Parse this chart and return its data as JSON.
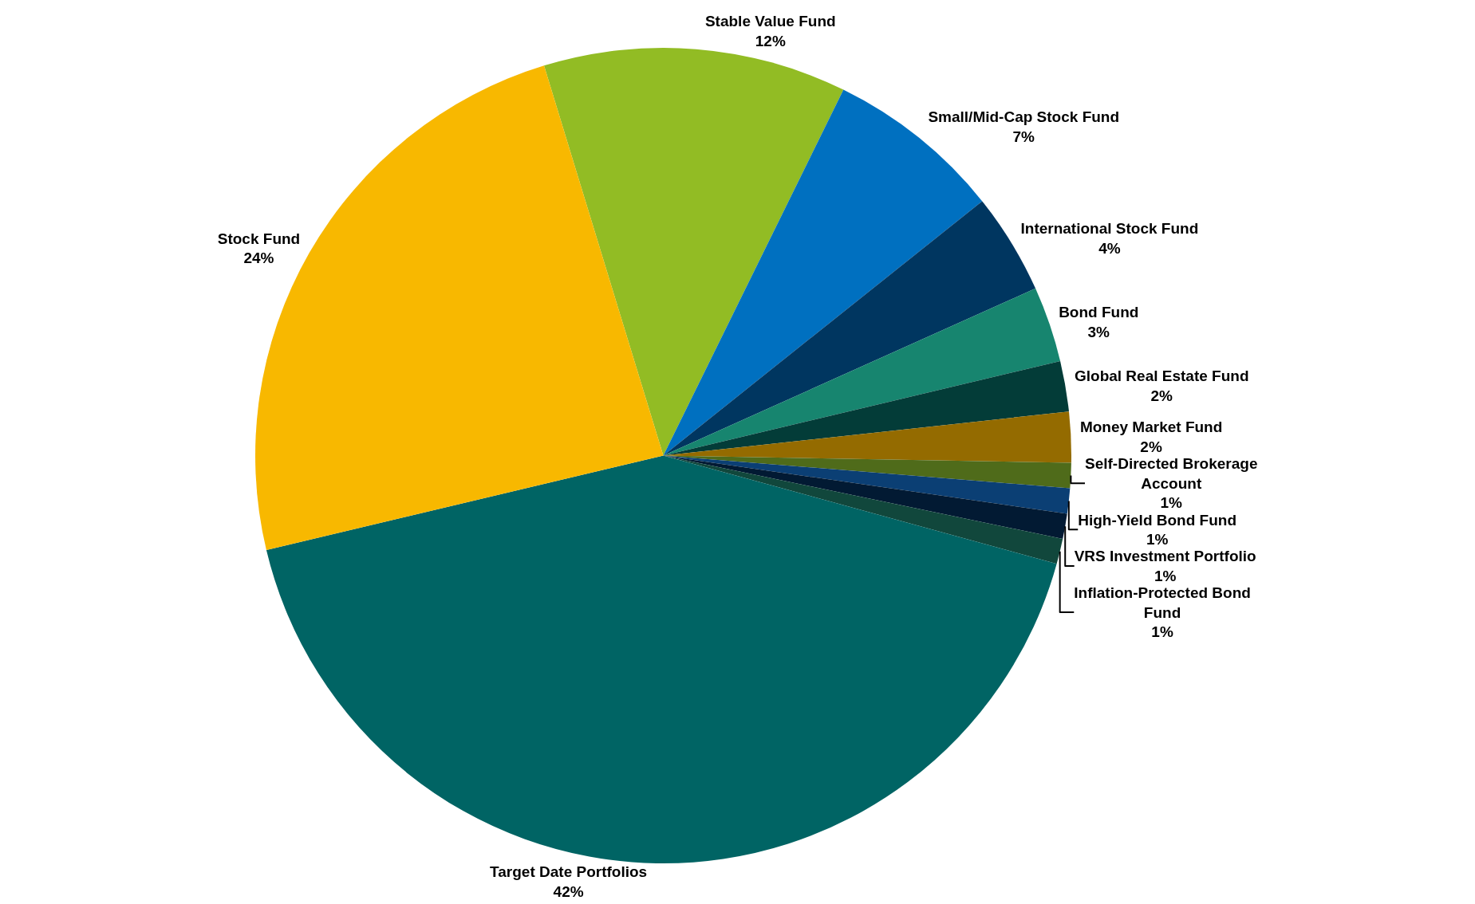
{
  "chart_data": {
    "type": "pie",
    "categories": [
      "Stable Value Fund",
      "Small/Mid-Cap Stock Fund",
      "International Stock Fund",
      "Bond Fund",
      "Global Real Estate Fund",
      "Money Market Fund",
      "Self-Directed Brokerage Account",
      "High-Yield Bond Fund",
      "VRS Investment Portfolio",
      "Inflation-Protected Bond Fund",
      "Target Date Portfolios",
      "Stock Fund"
    ],
    "values": [
      12,
      7,
      4,
      3,
      2,
      2,
      1,
      1,
      1,
      1,
      42,
      24
    ],
    "colors": [
      "#92bc24",
      "#0070c0",
      "#003660",
      "#17856f",
      "#033c38",
      "#946b00",
      "#4f6b1a",
      "#0b3f74",
      "#021a33",
      "#11473c",
      "#006464",
      "#f8b800"
    ],
    "value_labels": [
      "12%",
      "7%",
      "4%",
      "3%",
      "2%",
      "2%",
      "1%",
      "1%",
      "1%",
      "1%",
      "42%",
      "24%"
    ]
  }
}
